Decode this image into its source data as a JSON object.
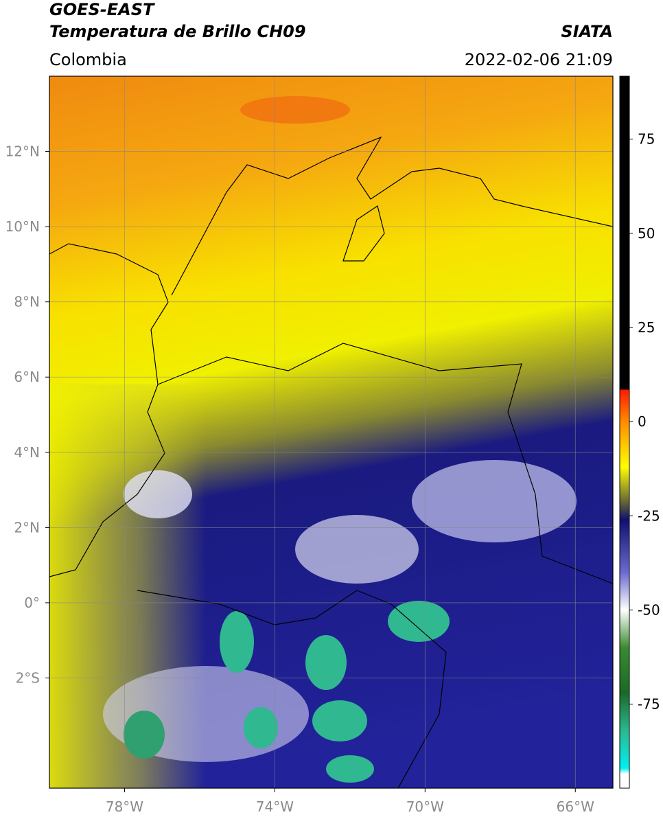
{
  "header": {
    "title": "GOES-EAST",
    "subtitle": "Temperatura de Brillo CH09",
    "source": "SIATA",
    "region": "Colombia",
    "datetime": "2022-02-06 21:09"
  },
  "map": {
    "xlim": [
      -80,
      -65
    ],
    "ylim": [
      -4.93,
      14
    ],
    "xticks": [
      {
        "value": -78,
        "label": "78°W"
      },
      {
        "value": -74,
        "label": "74°W"
      },
      {
        "value": -70,
        "label": "70°W"
      },
      {
        "value": -66,
        "label": "66°W"
      }
    ],
    "yticks": [
      {
        "value": 12,
        "label": "12°N"
      },
      {
        "value": 10,
        "label": "10°N"
      },
      {
        "value": 8,
        "label": "8°N"
      },
      {
        "value": 6,
        "label": "6°N"
      },
      {
        "value": 4,
        "label": "4°N"
      },
      {
        "value": 2,
        "label": "2°N"
      },
      {
        "value": 0,
        "label": "0°"
      },
      {
        "value": -2,
        "label": "2°S"
      }
    ],
    "grid": true
  },
  "colorbar": {
    "lim": [
      -97.3,
      91.7
    ],
    "ticks": [
      75,
      50,
      25,
      0,
      -25,
      -50,
      -75
    ],
    "stops": [
      {
        "value": 91.7,
        "color": "#000000"
      },
      {
        "value": 8.6,
        "color": "#000000"
      },
      {
        "value": 8.4,
        "color": "#ff1a00"
      },
      {
        "value": 0,
        "color": "#ff8c00"
      },
      {
        "value": -12,
        "color": "#ffff00"
      },
      {
        "value": -22,
        "color": "#5a5a3a"
      },
      {
        "value": -26,
        "color": "#101070"
      },
      {
        "value": -40,
        "color": "#6a6ad0"
      },
      {
        "value": -50,
        "color": "#ffffff"
      },
      {
        "value": -60,
        "color": "#3a8a30"
      },
      {
        "value": -72,
        "color": "#1a6a28"
      },
      {
        "value": -82,
        "color": "#2ab890"
      },
      {
        "value": -92,
        "color": "#00f0f0"
      },
      {
        "value": -93.5,
        "color": "#ffffff"
      },
      {
        "value": -97.3,
        "color": "#ffffff"
      }
    ]
  }
}
